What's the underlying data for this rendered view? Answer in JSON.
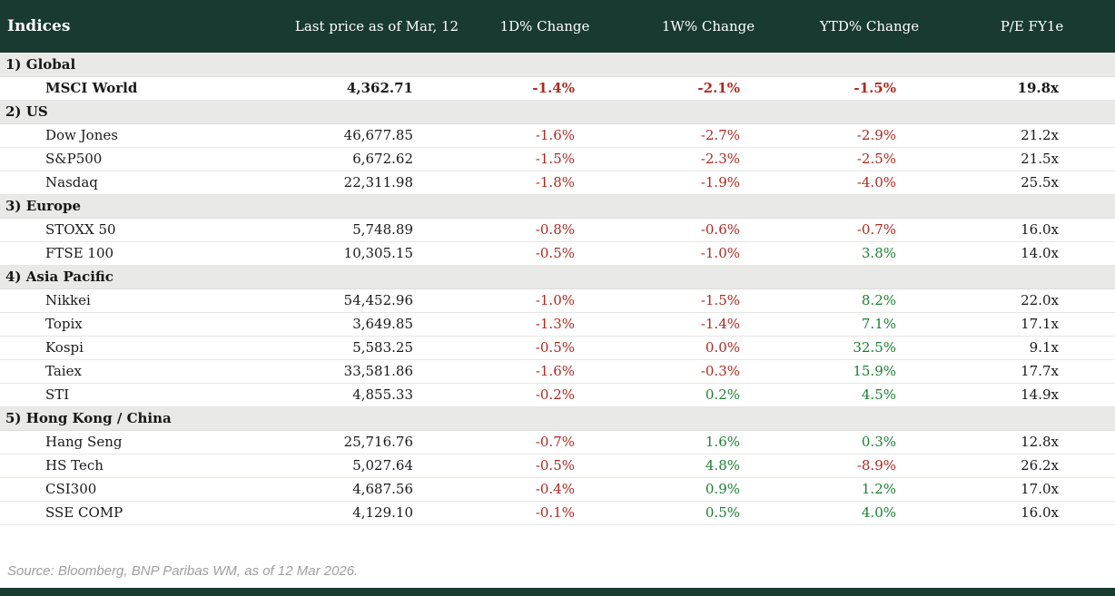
{
  "header": {
    "title": "Indices",
    "columns": [
      "Last price as of Mar, 12",
      "1D% Change",
      "1W% Change",
      "YTD% Change",
      "P/E FY1e"
    ]
  },
  "colors": {
    "header_bg": "#183a31",
    "section_bg": "#e9e9e7",
    "negative": "#ad2a21",
    "positive": "#1e7e34"
  },
  "sections": [
    {
      "label": "1) Global",
      "rows": [
        {
          "name": "MSCI World",
          "price": "4,362.71",
          "d1": "-1.4%",
          "w1": "-2.1%",
          "ytd": "-1.5%",
          "pe": "19.8x",
          "bold": true
        }
      ]
    },
    {
      "label": "2) US",
      "rows": [
        {
          "name": "Dow Jones",
          "price": "46,677.85",
          "d1": "-1.6%",
          "w1": "-2.7%",
          "ytd": "-2.9%",
          "pe": "21.2x",
          "bold": false
        },
        {
          "name": "S&P500",
          "price": "6,672.62",
          "d1": "-1.5%",
          "w1": "-2.3%",
          "ytd": "-2.5%",
          "pe": "21.5x",
          "bold": false
        },
        {
          "name": "Nasdaq",
          "price": "22,311.98",
          "d1": "-1.8%",
          "w1": "-1.9%",
          "ytd": "-4.0%",
          "pe": "25.5x",
          "bold": false
        }
      ]
    },
    {
      "label": "3) Europe",
      "rows": [
        {
          "name": "STOXX 50",
          "price": "5,748.89",
          "d1": "-0.8%",
          "w1": "-0.6%",
          "ytd": "-0.7%",
          "pe": "16.0x",
          "bold": false
        },
        {
          "name": "FTSE 100",
          "price": "10,305.15",
          "d1": "-0.5%",
          "w1": "-1.0%",
          "ytd": "3.8%",
          "pe": "14.0x",
          "bold": false
        }
      ]
    },
    {
      "label": "4) Asia Pacific",
      "rows": [
        {
          "name": "Nikkei",
          "price": "54,452.96",
          "d1": "-1.0%",
          "w1": "-1.5%",
          "ytd": "8.2%",
          "pe": "22.0x",
          "bold": false
        },
        {
          "name": "Topix",
          "price": "3,649.85",
          "d1": "-1.3%",
          "w1": "-1.4%",
          "ytd": "7.1%",
          "pe": "17.1x",
          "bold": false
        },
        {
          "name": "Kospi",
          "price": "5,583.25",
          "d1": "-0.5%",
          "w1": "0.0%",
          "ytd": "32.5%",
          "pe": "9.1x",
          "bold": false
        },
        {
          "name": "Taiex",
          "price": "33,581.86",
          "d1": "-1.6%",
          "w1": "-0.3%",
          "ytd": "15.9%",
          "pe": "17.7x",
          "bold": false
        },
        {
          "name": "STI",
          "price": "4,855.33",
          "d1": "-0.2%",
          "w1": "0.2%",
          "ytd": "4.5%",
          "pe": "14.9x",
          "bold": false
        }
      ]
    },
    {
      "label": "5) Hong Kong / China",
      "rows": [
        {
          "name": "Hang Seng",
          "price": "25,716.76",
          "d1": "-0.7%",
          "w1": "1.6%",
          "ytd": "0.3%",
          "pe": "12.8x",
          "bold": false
        },
        {
          "name": "HS Tech",
          "price": "5,027.64",
          "d1": "-0.5%",
          "w1": "4.8%",
          "ytd": "-8.9%",
          "pe": "26.2x",
          "bold": false
        },
        {
          "name": "CSI300",
          "price": "4,687.56",
          "d1": "-0.4%",
          "w1": "0.9%",
          "ytd": "1.2%",
          "pe": "17.0x",
          "bold": false
        },
        {
          "name": "SSE COMP",
          "price": "4,129.10",
          "d1": "-0.1%",
          "w1": "0.5%",
          "ytd": "4.0%",
          "pe": "16.0x",
          "bold": false
        }
      ]
    }
  ],
  "footer": {
    "source": "Source: Bloomberg, BNP Paribas WM, as of 12 Mar 2026."
  },
  "chart_data": {
    "type": "table",
    "title": "Indices",
    "columns": [
      "Indices",
      "Last price as of Mar, 12",
      "1D% Change",
      "1W% Change",
      "YTD% Change",
      "P/E FY1e"
    ],
    "rows": [
      [
        "1) Global",
        "",
        "",
        "",
        "",
        ""
      ],
      [
        "MSCI World",
        "4,362.71",
        "-1.4%",
        "-2.1%",
        "-1.5%",
        "19.8x"
      ],
      [
        "2) US",
        "",
        "",
        "",
        "",
        ""
      ],
      [
        "Dow Jones",
        "46,677.85",
        "-1.6%",
        "-2.7%",
        "-2.9%",
        "21.2x"
      ],
      [
        "S&P500",
        "6,672.62",
        "-1.5%",
        "-2.3%",
        "-2.5%",
        "21.5x"
      ],
      [
        "Nasdaq",
        "22,311.98",
        "-1.8%",
        "-1.9%",
        "-4.0%",
        "25.5x"
      ],
      [
        "3) Europe",
        "",
        "",
        "",
        "",
        ""
      ],
      [
        "STOXX 50",
        "5,748.89",
        "-0.8%",
        "-0.6%",
        "-0.7%",
        "16.0x"
      ],
      [
        "FTSE 100",
        "10,305.15",
        "-0.5%",
        "-1.0%",
        "3.8%",
        "14.0x"
      ],
      [
        "4) Asia Pacific",
        "",
        "",
        "",
        "",
        ""
      ],
      [
        "Nikkei",
        "54,452.96",
        "-1.0%",
        "-1.5%",
        "8.2%",
        "22.0x"
      ],
      [
        "Topix",
        "3,649.85",
        "-1.3%",
        "-1.4%",
        "7.1%",
        "17.1x"
      ],
      [
        "Kospi",
        "5,583.25",
        "-0.5%",
        "0.0%",
        "32.5%",
        "9.1x"
      ],
      [
        "Taiex",
        "33,581.86",
        "-1.6%",
        "-0.3%",
        "15.9%",
        "17.7x"
      ],
      [
        "STI",
        "4,855.33",
        "-0.2%",
        "0.2%",
        "4.5%",
        "14.9x"
      ],
      [
        "5) Hong Kong / China",
        "",
        "",
        "",
        "",
        ""
      ],
      [
        "Hang Seng",
        "25,716.76",
        "-0.7%",
        "1.6%",
        "0.3%",
        "12.8x"
      ],
      [
        "HS Tech",
        "5,027.64",
        "-0.5%",
        "4.8%",
        "-8.9%",
        "26.2x"
      ],
      [
        "CSI300",
        "4,687.56",
        "-0.4%",
        "0.9%",
        "1.2%",
        "17.0x"
      ],
      [
        "SSE COMP",
        "4,129.10",
        "-0.1%",
        "0.5%",
        "4.0%",
        "16.0x"
      ]
    ]
  }
}
